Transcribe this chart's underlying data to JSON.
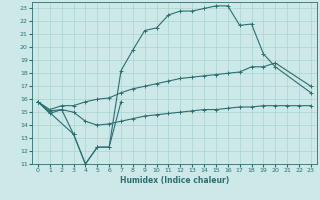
{
  "xlabel": "Humidex (Indice chaleur)",
  "bg_color": "#cce8e7",
  "grid_color": "#aad4d0",
  "line_color": "#2a7070",
  "xlim": [
    -0.5,
    23.5
  ],
  "ylim": [
    11,
    23.5
  ],
  "xticks": [
    0,
    1,
    2,
    3,
    4,
    5,
    6,
    7,
    8,
    9,
    10,
    11,
    12,
    13,
    14,
    15,
    16,
    17,
    18,
    19,
    20,
    21,
    22,
    23
  ],
  "yticks": [
    11,
    12,
    13,
    14,
    15,
    16,
    17,
    18,
    19,
    20,
    21,
    22,
    23
  ],
  "line1_x": [
    0,
    1,
    2,
    3,
    4,
    5,
    6,
    7
  ],
  "line1_y": [
    15.8,
    14.9,
    15.2,
    13.3,
    11.0,
    12.3,
    12.3,
    15.8
  ],
  "line2_x": [
    0,
    1,
    2,
    3,
    4,
    5,
    6,
    7,
    8,
    9,
    10,
    11,
    12,
    13,
    14,
    15,
    16,
    17,
    18,
    19,
    20,
    21,
    22,
    23
  ],
  "line2_y": [
    15.8,
    15.1,
    15.2,
    15.0,
    14.3,
    14.0,
    14.1,
    14.3,
    14.5,
    14.7,
    14.8,
    14.9,
    15.0,
    15.1,
    15.2,
    15.2,
    15.3,
    15.4,
    15.4,
    15.5,
    15.5,
    15.5,
    15.5,
    15.5
  ],
  "line3_x": [
    0,
    1,
    2,
    3,
    4,
    5,
    6,
    7,
    8,
    9,
    10,
    11,
    12,
    13,
    14,
    15,
    16,
    17,
    18,
    19,
    20,
    23
  ],
  "line3_y": [
    15.8,
    15.2,
    15.5,
    15.5,
    15.8,
    16.0,
    16.1,
    16.5,
    16.8,
    17.0,
    17.2,
    17.4,
    17.6,
    17.7,
    17.8,
    17.9,
    18.0,
    18.1,
    18.5,
    18.5,
    18.8,
    17.0
  ],
  "line4_x": [
    0,
    3,
    4,
    5,
    6,
    7,
    8,
    9,
    10,
    11,
    12,
    13,
    14,
    15,
    16,
    17,
    18,
    19,
    20,
    23
  ],
  "line4_y": [
    15.8,
    13.3,
    11.0,
    12.3,
    12.3,
    18.2,
    19.8,
    21.3,
    21.5,
    22.5,
    22.8,
    22.8,
    23.0,
    23.2,
    23.2,
    21.7,
    21.8,
    19.5,
    18.5,
    16.5
  ]
}
